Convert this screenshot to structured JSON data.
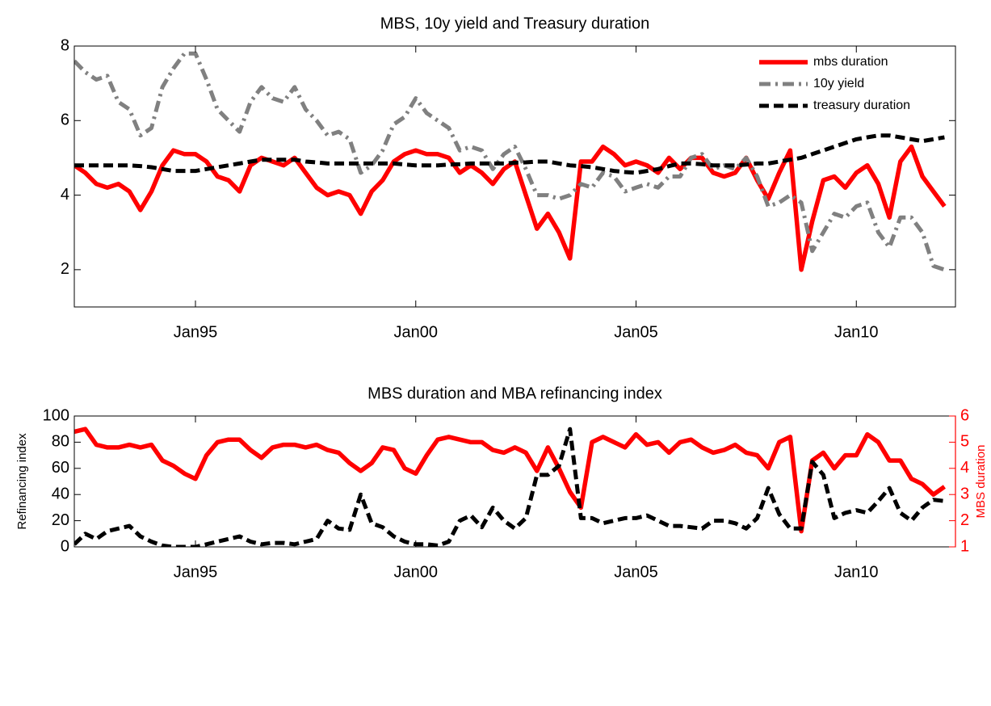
{
  "chart_data": [
    {
      "type": "line",
      "title": "MBS, 10y yield and Treasury duration",
      "x": [
        "1992-04",
        "1992-07",
        "1992-10",
        "1993-01",
        "1993-04",
        "1993-07",
        "1993-10",
        "1994-01",
        "1994-04",
        "1994-07",
        "1994-10",
        "1995-01",
        "1995-04",
        "1995-07",
        "1995-10",
        "1996-01",
        "1996-04",
        "1996-07",
        "1996-10",
        "1997-01",
        "1997-04",
        "1997-07",
        "1997-10",
        "1998-01",
        "1998-04",
        "1998-07",
        "1998-10",
        "1999-01",
        "1999-04",
        "1999-07",
        "1999-10",
        "2000-01",
        "2000-04",
        "2000-07",
        "2000-10",
        "2001-01",
        "2001-04",
        "2001-07",
        "2001-10",
        "2002-01",
        "2002-04",
        "2002-07",
        "2002-10",
        "2003-01",
        "2003-04",
        "2003-07",
        "2003-10",
        "2004-01",
        "2004-04",
        "2004-07",
        "2004-10",
        "2005-01",
        "2005-04",
        "2005-07",
        "2005-10",
        "2006-01",
        "2006-04",
        "2006-07",
        "2006-10",
        "2007-01",
        "2007-04",
        "2007-07",
        "2007-10",
        "2008-01",
        "2008-04",
        "2008-07",
        "2008-10",
        "2009-01",
        "2009-04",
        "2009-07",
        "2009-10",
        "2010-01",
        "2010-04",
        "2010-07",
        "2010-10",
        "2011-01",
        "2011-04",
        "2011-07",
        "2011-10",
        "2012-01"
      ],
      "series": [
        {
          "name": "mbs duration",
          "color": "#ff0000",
          "style": "solid",
          "values": [
            4.8,
            4.6,
            4.3,
            4.2,
            4.3,
            4.1,
            3.6,
            4.1,
            4.8,
            5.2,
            5.1,
            5.1,
            4.9,
            4.5,
            4.4,
            4.1,
            4.8,
            5.0,
            4.9,
            4.8,
            5.0,
            4.6,
            4.2,
            4.0,
            4.1,
            4.0,
            3.5,
            4.1,
            4.4,
            4.9,
            5.1,
            5.2,
            5.1,
            5.1,
            5.0,
            4.6,
            4.8,
            4.6,
            4.3,
            4.7,
            4.9,
            4.0,
            3.1,
            3.5,
            3.0,
            2.3,
            4.9,
            4.9,
            5.3,
            5.1,
            4.8,
            4.9,
            4.8,
            4.6,
            5.0,
            4.7,
            5.0,
            5.0,
            4.6,
            4.5,
            4.6,
            5.0,
            4.4,
            3.9,
            4.6,
            5.2,
            2.0,
            3.3,
            4.4,
            4.5,
            4.2,
            4.6,
            4.8,
            4.3,
            3.4,
            4.9,
            5.3,
            4.5,
            4.1,
            3.7
          ]
        },
        {
          "name": "10y yield",
          "color": "#808080",
          "style": "dashdot",
          "values": [
            7.6,
            7.3,
            7.1,
            7.2,
            6.5,
            6.3,
            5.6,
            5.8,
            6.9,
            7.4,
            7.8,
            7.8,
            7.1,
            6.3,
            6.0,
            5.7,
            6.5,
            6.9,
            6.6,
            6.5,
            6.9,
            6.3,
            6.0,
            5.6,
            5.7,
            5.5,
            4.6,
            4.8,
            5.2,
            5.9,
            6.1,
            6.6,
            6.2,
            6.0,
            5.8,
            5.2,
            5.3,
            5.2,
            4.7,
            5.1,
            5.3,
            4.7,
            4.0,
            4.0,
            3.9,
            4.0,
            4.3,
            4.2,
            4.6,
            4.5,
            4.1,
            4.2,
            4.3,
            4.2,
            4.5,
            4.5,
            5.0,
            5.1,
            4.7,
            4.8,
            4.7,
            5.0,
            4.5,
            3.7,
            3.8,
            4.0,
            3.8,
            2.5,
            3.0,
            3.5,
            3.4,
            3.7,
            3.8,
            3.0,
            2.6,
            3.4,
            3.4,
            3.0,
            2.1,
            2.0
          ]
        },
        {
          "name": "treasury duration",
          "color": "#000000",
          "style": "dashed",
          "values": [
            4.8,
            4.8,
            4.8,
            4.8,
            4.8,
            4.8,
            4.78,
            4.75,
            4.7,
            4.65,
            4.65,
            4.65,
            4.7,
            4.75,
            4.8,
            4.85,
            4.9,
            4.95,
            4.95,
            4.95,
            4.95,
            4.9,
            4.88,
            4.85,
            4.85,
            4.85,
            4.85,
            4.85,
            4.85,
            4.85,
            4.82,
            4.8,
            4.8,
            4.8,
            4.82,
            4.83,
            4.85,
            4.85,
            4.85,
            4.85,
            4.87,
            4.88,
            4.9,
            4.9,
            4.85,
            4.8,
            4.78,
            4.75,
            4.7,
            4.65,
            4.62,
            4.6,
            4.65,
            4.7,
            4.78,
            4.85,
            4.85,
            4.83,
            4.8,
            4.8,
            4.8,
            4.82,
            4.85,
            4.85,
            4.9,
            4.95,
            5.0,
            5.1,
            5.2,
            5.3,
            5.4,
            5.5,
            5.55,
            5.6,
            5.6,
            5.55,
            5.5,
            5.45,
            5.5,
            5.55
          ]
        }
      ],
      "xlim": [
        "1992-04",
        "2012-04"
      ],
      "xticks": [
        {
          "value": "1995-01",
          "label": "Jan95"
        },
        {
          "value": "2000-01",
          "label": "Jan00"
        },
        {
          "value": "2005-01",
          "label": "Jan05"
        },
        {
          "value": "2010-01",
          "label": "Jan10"
        }
      ],
      "ylim": [
        1,
        8
      ],
      "yticks": [
        2,
        4,
        6,
        8
      ],
      "legend": "northeast"
    },
    {
      "type": "line",
      "title": "MBS duration and MBA refinancing index",
      "x": [
        "1992-04",
        "1992-07",
        "1992-10",
        "1993-01",
        "1993-04",
        "1993-07",
        "1993-10",
        "1994-01",
        "1994-04",
        "1994-07",
        "1994-10",
        "1995-01",
        "1995-04",
        "1995-07",
        "1995-10",
        "1996-01",
        "1996-04",
        "1996-07",
        "1996-10",
        "1997-01",
        "1997-04",
        "1997-07",
        "1997-10",
        "1998-01",
        "1998-04",
        "1998-07",
        "1998-10",
        "1999-01",
        "1999-04",
        "1999-07",
        "1999-10",
        "2000-01",
        "2000-04",
        "2000-07",
        "2000-10",
        "2001-01",
        "2001-04",
        "2001-07",
        "2001-10",
        "2002-01",
        "2002-04",
        "2002-07",
        "2002-10",
        "2003-01",
        "2003-04",
        "2003-07",
        "2003-10",
        "2004-01",
        "2004-04",
        "2004-07",
        "2004-10",
        "2005-01",
        "2005-04",
        "2005-07",
        "2005-10",
        "2006-01",
        "2006-04",
        "2006-07",
        "2006-10",
        "2007-01",
        "2007-04",
        "2007-07",
        "2007-10",
        "2008-01",
        "2008-04",
        "2008-07",
        "2008-10",
        "2009-01",
        "2009-04",
        "2009-07",
        "2009-10",
        "2010-01",
        "2010-04",
        "2010-07",
        "2010-10",
        "2011-01",
        "2011-04",
        "2011-07",
        "2011-10",
        "2012-01"
      ],
      "ylabel": "Refinancing index",
      "y2label": "MBS duration",
      "y2color": "#ff0000",
      "series": [
        {
          "color": "#ff0000",
          "style": "solid",
          "axis": "y2",
          "values": [
            5.4,
            5.5,
            4.9,
            4.8,
            4.8,
            4.9,
            4.8,
            4.9,
            4.3,
            4.1,
            3.8,
            3.6,
            4.5,
            5.0,
            5.1,
            5.1,
            4.7,
            4.4,
            4.8,
            4.9,
            4.9,
            4.8,
            4.9,
            4.7,
            4.6,
            4.2,
            3.9,
            4.2,
            4.8,
            4.7,
            4.0,
            3.8,
            4.5,
            5.1,
            5.2,
            5.1,
            5.0,
            5.0,
            4.7,
            4.6,
            4.8,
            4.6,
            3.9,
            4.8,
            4.0,
            3.1,
            2.5,
            5.0,
            5.2,
            5.0,
            4.8,
            5.3,
            4.9,
            5.0,
            4.6,
            5.0,
            5.1,
            4.8,
            4.6,
            4.7,
            4.9,
            4.6,
            4.5,
            4.0,
            5.0,
            5.2,
            1.6,
            4.3,
            4.6,
            4.0,
            4.5,
            4.5,
            5.3,
            5.0,
            4.3,
            4.3,
            3.6,
            3.4,
            3.0,
            3.3
          ]
        },
        {
          "color": "#000000",
          "style": "dashed",
          "values": [
            2,
            10,
            6,
            12,
            14,
            16,
            8,
            4,
            1,
            0,
            0,
            0,
            2,
            4,
            6,
            8,
            4,
            2,
            3,
            3,
            2,
            4,
            6,
            20,
            14,
            13,
            40,
            18,
            15,
            8,
            4,
            2,
            2,
            1,
            4,
            20,
            24,
            15,
            30,
            20,
            14,
            22,
            55,
            55,
            62,
            90,
            22,
            22,
            18,
            20,
            22,
            22,
            24,
            20,
            16,
            16,
            15,
            14,
            20,
            20,
            18,
            14,
            22,
            45,
            25,
            14,
            14,
            65,
            55,
            22,
            26,
            28,
            26,
            35,
            45,
            26,
            20,
            30,
            36,
            35
          ]
        }
      ],
      "xlim": [
        "1992-04",
        "2012-04"
      ],
      "xticks": [
        {
          "value": "1995-01",
          "label": "Jan95"
        },
        {
          "value": "2000-01",
          "label": "Jan00"
        },
        {
          "value": "2005-01",
          "label": "Jan05"
        },
        {
          "value": "2010-01",
          "label": "Jan10"
        }
      ],
      "ylim": [
        0,
        100
      ],
      "yticks": [
        0,
        20,
        40,
        60,
        80,
        100
      ],
      "y2lim": [
        1,
        6
      ],
      "y2ticks": [
        1,
        2,
        3,
        4,
        5,
        6
      ]
    }
  ]
}
